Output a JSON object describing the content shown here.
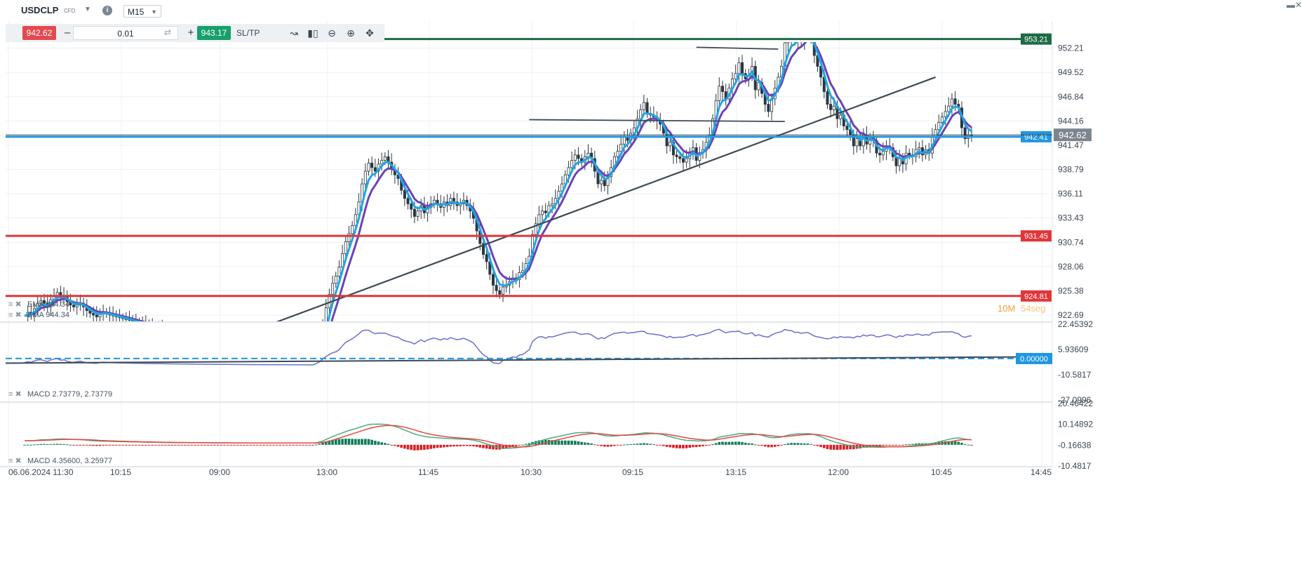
{
  "header": {
    "symbol": "USDCLP",
    "symbol_type": "CFD",
    "timeframe": "M15",
    "sell_price": "942.62",
    "quantity": "0.01",
    "buy_price": "943.17",
    "sltp_label": "SL/TP",
    "tools": [
      "line-chart-icon",
      "candles-icon",
      "zoom-out-icon",
      "zoom-in-icon",
      "crosshair-icon"
    ]
  },
  "colors": {
    "bull": "#0f7d57",
    "bear": "#d81f26",
    "ema_fast": "#1ea7e1",
    "ema_slow": "#6a43b8",
    "resistance": "#1e6b46",
    "support": "#e0363a",
    "current": "#2196e0",
    "trend": "#3e4a56",
    "price_badge": "#7c8590",
    "rsi": "#6b6fd0",
    "macd_line": "#e4493f",
    "macd_signal": "#4aaa86"
  },
  "chart_data": {
    "type": "line",
    "title": "USDCLP CFD M15",
    "price_axis": {
      "ticks": [
        "952.21",
        "949.52",
        "946.84",
        "944.16",
        "941.47",
        "938.79",
        "936.11",
        "933.43",
        "930.74",
        "928.06",
        "925.38",
        "922.69"
      ],
      "ylim": [
        922.0,
        955.2
      ]
    },
    "time_axis": {
      "ticks": [
        "06.06.2024 11:30",
        "10:15",
        "09:00",
        "13:00",
        "11:45",
        "10:30",
        "09:15",
        "13:15",
        "12:00",
        "10:45",
        "14:45"
      ]
    },
    "levels": [
      {
        "name": "resistance",
        "value": 953.21,
        "label": "953.21"
      },
      {
        "name": "current-bid",
        "value": 942.41,
        "label": "942.41"
      },
      {
        "name": "support-1",
        "value": 931.45,
        "label": "931.45"
      },
      {
        "name": "support-2",
        "value": 924.81,
        "label": "924.81"
      }
    ],
    "last_price": {
      "value": 942.62,
      "label": "942.62"
    },
    "countdown": {
      "minutes": "10M",
      "seconds": "54seg"
    },
    "ema_labels": [
      "EMA 944.34",
      "EMA 944.34"
    ],
    "trendlines": [
      {
        "name": "rising-trendline",
        "points": [
          [
            70,
            921.0
          ],
          [
            278,
            949.0
          ]
        ]
      },
      {
        "name": "horizontal-944",
        "points": [
          [
            154,
            944.3
          ],
          [
            232,
            944.1
          ]
        ]
      },
      {
        "name": "horizontal-952",
        "points": [
          [
            205,
            952.3
          ],
          [
            230,
            952.1
          ]
        ]
      }
    ],
    "close": [
      922.6,
      923.0,
      922.8,
      923.4,
      924.0,
      924.3,
      924.0,
      923.6,
      924.4,
      924.8,
      925.2,
      924.6,
      924.8,
      924.2,
      923.8,
      923.6,
      923.8,
      924.0,
      923.6,
      923.2,
      922.9,
      922.7,
      922.5,
      922.8,
      923.0,
      922.9,
      922.7,
      922.6,
      922.5,
      922.4,
      922.3,
      922.2,
      922.1,
      922.0,
      921.9,
      921.8,
      921.7,
      921.6,
      921.5,
      921.4,
      921.3,
      921.2,
      921.1,
      921.0,
      920.9,
      920.8,
      920.7,
      920.6,
      920.5,
      920.4,
      920.3,
      920.2,
      920.1,
      920.0,
      919.9,
      919.8,
      919.7,
      919.6,
      919.5,
      919.4,
      919.3,
      919.2,
      919.1,
      919.0,
      918.9,
      918.8,
      918.7,
      918.6,
      918.5,
      918.4,
      918.3,
      918.2,
      918.1,
      918.0,
      917.9,
      917.8,
      917.7,
      917.6,
      917.5,
      917.4,
      917.3,
      917.2,
      917.1,
      917.0,
      916.9,
      916.8,
      916.7,
      916.6,
      916.5,
      917.5,
      919.0,
      921.5,
      923.5,
      925.0,
      926.2,
      927.0,
      928.0,
      929.5,
      930.8,
      931.7,
      932.6,
      933.8,
      935.2,
      937.2,
      938.6,
      939.5,
      939.0,
      938.6,
      939.4,
      939.8,
      940.2,
      939.6,
      938.8,
      938.2,
      937.8,
      936.5,
      935.6,
      935.0,
      934.4,
      933.6,
      934.2,
      934.8,
      934.0,
      934.6,
      935.0,
      935.4,
      935.0,
      934.6,
      935.2,
      934.8,
      935.6,
      935.2,
      934.8,
      935.0,
      935.4,
      934.8,
      934.2,
      933.4,
      932.0,
      930.6,
      929.4,
      928.6,
      927.2,
      926.0,
      925.4,
      925.0,
      925.8,
      926.0,
      926.4,
      926.8,
      926.6,
      927.4,
      927.6,
      928.4,
      929.2,
      931.6,
      932.8,
      933.8,
      934.2,
      934.0,
      934.8,
      935.0,
      935.6,
      936.4,
      937.2,
      938.2,
      939.0,
      939.8,
      940.4,
      940.0,
      939.6,
      940.2,
      940.6,
      940.0,
      938.6,
      937.2,
      937.6,
      937.0,
      938.0,
      939.0,
      940.2,
      940.8,
      941.6,
      942.4,
      942.0,
      942.8,
      943.4,
      944.4,
      945.4,
      946.2,
      945.0,
      944.8,
      944.6,
      944.2,
      943.8,
      942.8,
      941.4,
      941.8,
      940.4,
      940.2,
      940.0,
      939.6,
      940.0,
      940.6,
      941.2,
      939.8,
      940.6,
      941.0,
      941.8,
      942.6,
      944.4,
      946.4,
      948.0,
      947.4,
      946.6,
      947.8,
      948.8,
      949.4,
      950.6,
      949.4,
      948.8,
      949.2,
      950.2,
      947.6,
      948.4,
      947.2,
      946.0,
      945.2,
      946.6,
      947.8,
      949.0,
      950.2,
      952.8,
      953.2,
      953.8,
      953.0,
      953.6,
      953.0,
      953.8,
      954.4,
      953.2,
      951.4,
      950.2,
      949.0,
      947.4,
      946.0,
      945.4,
      945.8,
      944.4,
      944.8,
      943.6,
      943.2,
      942.6,
      941.4,
      942.2,
      941.4,
      942.6,
      941.6,
      942.2,
      942.0,
      940.6,
      940.4,
      940.8,
      941.4,
      941.2,
      940.2,
      939.2,
      940.0,
      939.4,
      940.6,
      940.4,
      940.2,
      941.0,
      941.2,
      940.4,
      941.0,
      940.6,
      942.4,
      943.2,
      944.0,
      944.6,
      945.2,
      945.8,
      946.6,
      946.0,
      945.6,
      943.4,
      942.2,
      942.6,
      942.62
    ],
    "rsi": {
      "label": "",
      "ticks": [
        "22.45392",
        "5.93609",
        "-10.5817",
        "-27.0996"
      ],
      "ylim": [
        -27.0996,
        22.45392
      ],
      "zero_label": "0.00000"
    },
    "macd": {
      "label": "MACD 2.73779, 2.73779",
      "bottom_label": "MACD 4.35600, 3.25977",
      "ticks": [
        "20.46422",
        "10.14892",
        "-0.16638",
        "-10.4817"
      ],
      "ylim": [
        -10.4817,
        20.46422
      ]
    }
  }
}
